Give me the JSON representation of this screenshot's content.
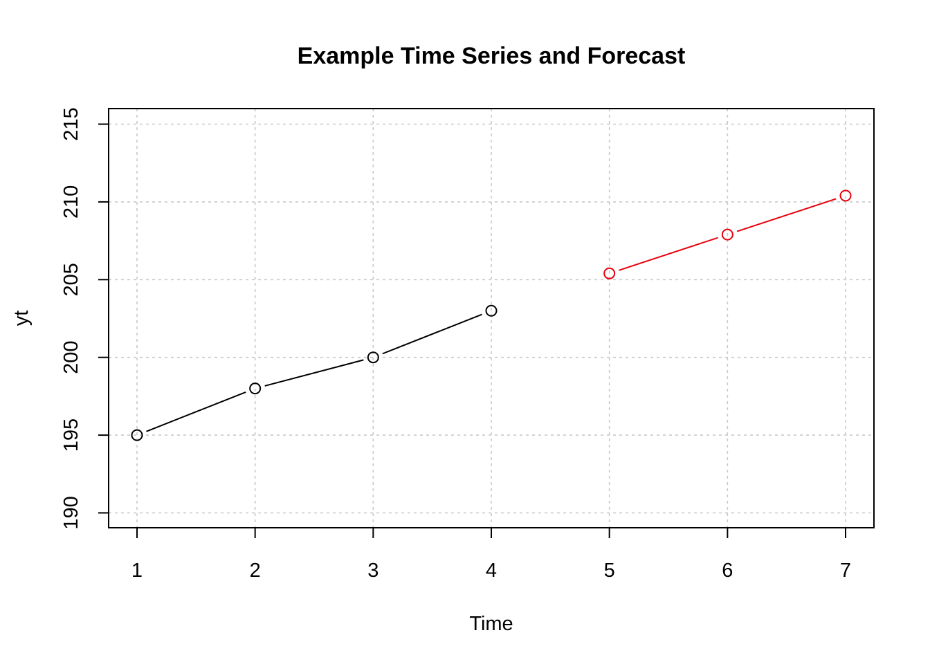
{
  "chart_data": {
    "type": "line",
    "title": "Example Time Series and Forecast",
    "xlabel": "Time",
    "ylabel": "yt",
    "xlim": [
      1,
      7
    ],
    "ylim": [
      190,
      215
    ],
    "x_ticks": [
      1,
      2,
      3,
      4,
      5,
      6,
      7
    ],
    "y_ticks": [
      190,
      195,
      200,
      205,
      210,
      215
    ],
    "grid": true,
    "series": [
      {
        "x": [
          1,
          2,
          3,
          4
        ],
        "values": [
          195,
          198,
          200,
          203
        ],
        "color": "#000000",
        "marker": "open-circle"
      },
      {
        "x": [
          5,
          6,
          7
        ],
        "values": [
          205.4,
          207.9,
          210.4
        ],
        "color": "#e8000b",
        "marker": "open-circle"
      }
    ]
  }
}
